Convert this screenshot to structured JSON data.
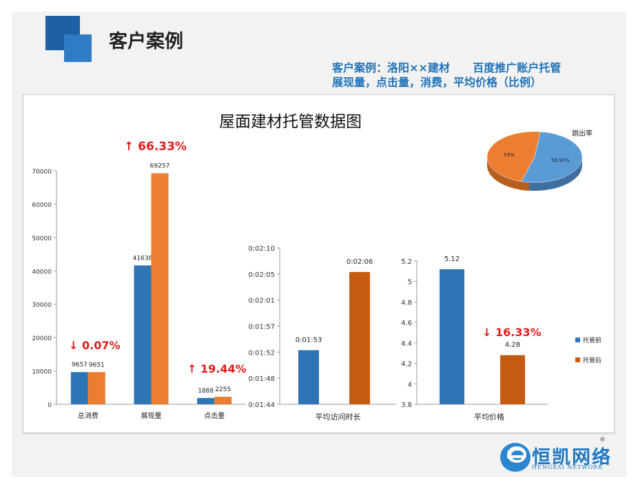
{
  "header": {
    "title": "客户案例",
    "subtitle_line1": "客户案例：洛阳××建材      百度推广账户托管",
    "subtitle_line2": "展现量，点击量，消费，平均价格（比例）"
  },
  "chart_title": "屋面建材托管数据图",
  "colors": {
    "before": "#2e75b6",
    "after_left": "#ed7d31",
    "after_right": "#c55a11",
    "accent_red": "#e21c1c"
  },
  "legend": {
    "before": "托管前",
    "after": "托管后"
  },
  "pie_legend_title": "跳出率",
  "chart_data": [
    {
      "type": "bar",
      "categories": [
        "总消费",
        "展现量",
        "点击量"
      ],
      "series": [
        {
          "name": "托管前",
          "values": [
            9657,
            41638,
            1888
          ]
        },
        {
          "name": "托管后",
          "values": [
            9651,
            69257,
            2255
          ]
        }
      ],
      "ylim": [
        0,
        70000
      ],
      "yticks": [
        "0",
        "10000",
        "20000",
        "30000",
        "40000",
        "50000",
        "60000",
        "70000"
      ],
      "annotations": [
        "↓ 0.07%",
        "↑ 66.33%",
        "↑ 19.44%"
      ]
    },
    {
      "type": "bar",
      "categories": [
        "平均访问时长"
      ],
      "series": [
        {
          "name": "托管前",
          "values": [
            "0:01:53"
          ],
          "seconds": [
            113
          ]
        },
        {
          "name": "托管后",
          "values": [
            "0:02:06"
          ],
          "seconds": [
            126
          ]
        }
      ],
      "ylim": [
        104,
        130
      ],
      "yticks": [
        "0:01:44",
        "0:01:48",
        "0:01:52",
        "0:01:57",
        "0:02:01",
        "0:02:05",
        "0:02:10"
      ]
    },
    {
      "type": "bar",
      "categories": [
        "平均价格"
      ],
      "series": [
        {
          "name": "托管前",
          "values": [
            5.12
          ]
        },
        {
          "name": "托管后",
          "values": [
            4.28
          ]
        }
      ],
      "ylim": [
        3.8,
        5.2
      ],
      "yticks": [
        "3.8",
        "4",
        "4.2",
        "4.4",
        "4.6",
        "4.8",
        "5",
        "5.2"
      ],
      "annotations": [
        "↓ 16.33%"
      ]
    },
    {
      "type": "pie",
      "title": "跳出率",
      "labels": [
        "58.92%",
        "53%"
      ],
      "values": [
        58.92,
        53
      ],
      "colors": [
        "#5b9bd5",
        "#ed7d31"
      ]
    }
  ],
  "logo": {
    "name": "恒凯网络",
    "sub": "HENGKAI NETWORK",
    "mark": "®"
  }
}
